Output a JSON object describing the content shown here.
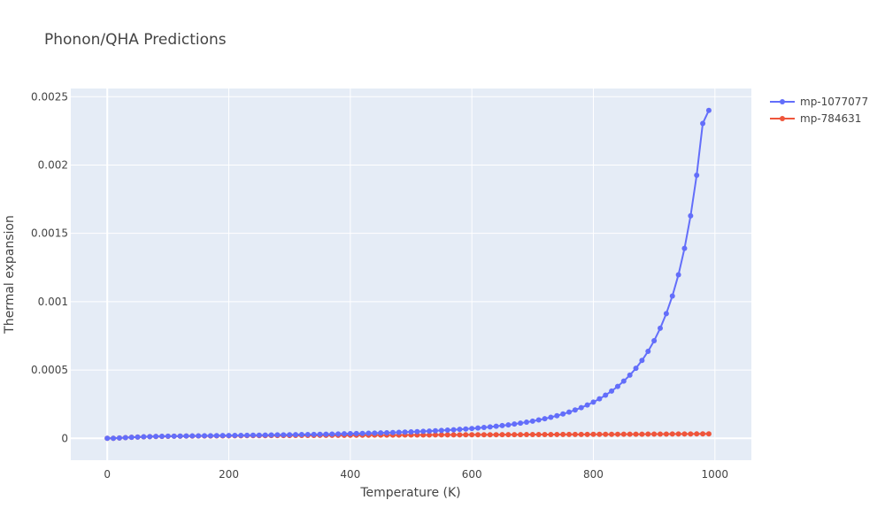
{
  "chart_data": {
    "type": "line",
    "title": "Phonon/QHA Predictions",
    "xlabel": "Temperature (K)",
    "ylabel": "Thermal expansion",
    "xlim": [
      -60,
      1060
    ],
    "ylim": [
      -0.00016,
      0.00256
    ],
    "x_ticks": [
      0,
      200,
      400,
      600,
      800,
      1000
    ],
    "x_tick_labels": [
      "0",
      "200",
      "400",
      "600",
      "800",
      "1000"
    ],
    "y_ticks": [
      0,
      0.0005,
      0.001,
      0.0015,
      0.002,
      0.0025
    ],
    "y_tick_labels": [
      "0",
      "0.0005",
      "0.001",
      "0.0015",
      "0.002",
      "0.0025"
    ],
    "grid": true,
    "legend_position": "top-right",
    "plot_bgcolor": "#e5ecf6",
    "series": [
      {
        "name": "mp-1077077",
        "color": "#636efa",
        "x": [
          0,
          10,
          20,
          30,
          40,
          50,
          60,
          70,
          80,
          90,
          100,
          110,
          120,
          130,
          140,
          150,
          160,
          170,
          180,
          190,
          200,
          210,
          220,
          230,
          240,
          250,
          260,
          270,
          280,
          290,
          300,
          310,
          320,
          330,
          340,
          350,
          360,
          370,
          380,
          390,
          400,
          410,
          420,
          430,
          440,
          450,
          460,
          470,
          480,
          490,
          500,
          510,
          520,
          530,
          540,
          550,
          560,
          570,
          580,
          590,
          600,
          610,
          620,
          630,
          640,
          650,
          660,
          670,
          680,
          690,
          700,
          710,
          720,
          730,
          740,
          750,
          760,
          770,
          780,
          790,
          800,
          810,
          820,
          830,
          840,
          850,
          860,
          870,
          880,
          890,
          900,
          910,
          920,
          930,
          940,
          950,
          960,
          970,
          980,
          990
        ],
        "y": [
          0,
          6e-07,
          2.4e-06,
          4.8e-06,
          7.2e-06,
          9.4e-06,
          1.12e-05,
          1.26e-05,
          1.37e-05,
          1.46e-05,
          1.53e-05,
          1.59e-05,
          1.65e-05,
          1.71e-05,
          1.77e-05,
          1.82e-05,
          1.87e-05,
          1.92e-05,
          1.97e-05,
          2.02e-05,
          2.07e-05,
          2.12e-05,
          2.17e-05,
          2.22e-05,
          2.28e-05,
          2.33e-05,
          2.38e-05,
          2.44e-05,
          2.5e-05,
          2.56e-05,
          2.62e-05,
          2.68e-05,
          2.75e-05,
          2.82e-05,
          2.89e-05,
          2.97e-05,
          3.05e-05,
          3.13e-05,
          3.22e-05,
          3.31e-05,
          3.41e-05,
          3.51e-05,
          3.62e-05,
          3.73e-05,
          3.85e-05,
          3.98e-05,
          4.11e-05,
          4.25e-05,
          4.4e-05,
          4.56e-05,
          4.73e-05,
          4.91e-05,
          5.1e-05,
          5.3e-05,
          5.52e-05,
          5.75e-05,
          6e-05,
          6.27e-05,
          6.55e-05,
          6.86e-05,
          7.19e-05,
          7.55e-05,
          7.94e-05,
          8.36e-05,
          8.82e-05,
          9.32e-05,
          9.86e-05,
          0.0001045,
          0.000111,
          0.0001181,
          0.0001259,
          0.0001344,
          0.0001438,
          0.0001541,
          0.0001655,
          0.0001781,
          0.000192,
          0.0002075,
          0.0002247,
          0.0002438,
          0.0002652,
          0.000289,
          0.0003158,
          0.000346,
          0.00038,
          0.0004185,
          0.0004624,
          0.0005125,
          0.0005702,
          0.0006368,
          0.0007144,
          0.0008055,
          0.000913,
          0.0010415,
          0.0011971,
          0.00139,
          0.0016283,
          0.0019255,
          0.0023045,
          0.0024
        ]
      },
      {
        "name": "mp-784631",
        "color": "#ef553b",
        "x": [
          0,
          10,
          20,
          30,
          40,
          50,
          60,
          70,
          80,
          90,
          100,
          110,
          120,
          130,
          140,
          150,
          160,
          170,
          180,
          190,
          200,
          210,
          220,
          230,
          240,
          250,
          260,
          270,
          280,
          290,
          300,
          310,
          320,
          330,
          340,
          350,
          360,
          370,
          380,
          390,
          400,
          410,
          420,
          430,
          440,
          450,
          460,
          470,
          480,
          490,
          500,
          510,
          520,
          530,
          540,
          550,
          560,
          570,
          580,
          590,
          600,
          610,
          620,
          630,
          640,
          650,
          660,
          670,
          680,
          690,
          700,
          710,
          720,
          730,
          740,
          750,
          760,
          770,
          780,
          790,
          800,
          810,
          820,
          830,
          840,
          850,
          860,
          870,
          880,
          890,
          900,
          910,
          920,
          930,
          940,
          950,
          960,
          970,
          980,
          990
        ],
        "y": [
          0,
          6e-07,
          2.4e-06,
          4.8e-06,
          7.2e-06,
          9.4e-06,
          1.11e-05,
          1.24e-05,
          1.34e-05,
          1.42e-05,
          1.48e-05,
          1.53e-05,
          1.58e-05,
          1.62e-05,
          1.66e-05,
          1.7e-05,
          1.73e-05,
          1.76e-05,
          1.79e-05,
          1.82e-05,
          1.85e-05,
          1.88e-05,
          1.9e-05,
          1.93e-05,
          1.95e-05,
          1.98e-05,
          2e-05,
          2.02e-05,
          2.04e-05,
          2.06e-05,
          2.08e-05,
          2.1e-05,
          2.12e-05,
          2.14e-05,
          2.16e-05,
          2.18e-05,
          2.2e-05,
          2.22e-05,
          2.24e-05,
          2.25e-05,
          2.27e-05,
          2.29e-05,
          2.31e-05,
          2.32e-05,
          2.34e-05,
          2.36e-05,
          2.37e-05,
          2.39e-05,
          2.41e-05,
          2.42e-05,
          2.44e-05,
          2.46e-05,
          2.47e-05,
          2.49e-05,
          2.5e-05,
          2.52e-05,
          2.54e-05,
          2.55e-05,
          2.57e-05,
          2.58e-05,
          2.6e-05,
          2.61e-05,
          2.63e-05,
          2.65e-05,
          2.66e-05,
          2.68e-05,
          2.69e-05,
          2.71e-05,
          2.72e-05,
          2.74e-05,
          2.76e-05,
          2.77e-05,
          2.79e-05,
          2.8e-05,
          2.82e-05,
          2.84e-05,
          2.85e-05,
          2.87e-05,
          2.88e-05,
          2.9e-05,
          2.92e-05,
          2.93e-05,
          2.95e-05,
          2.97e-05,
          2.98e-05,
          3e-05,
          3.02e-05,
          3.04e-05,
          3.05e-05,
          3.07e-05,
          3.09e-05,
          3.11e-05,
          3.13e-05,
          3.15e-05,
          3.17e-05,
          3.19e-05,
          3.21e-05,
          3.23e-05,
          3.25e-05,
          3.27e-05
        ]
      }
    ]
  }
}
